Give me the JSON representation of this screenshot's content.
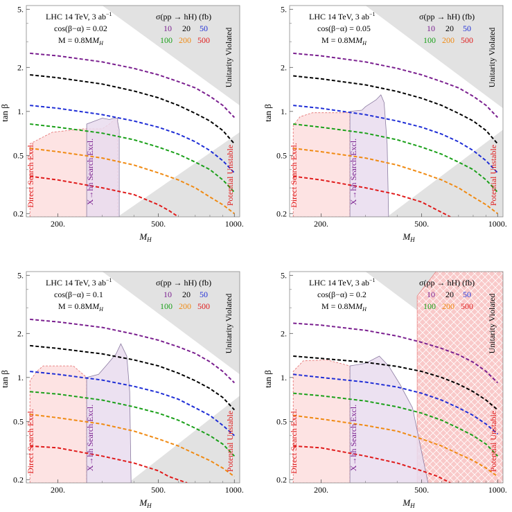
{
  "figure": {
    "legend_title": "σ(pp → hH) (fb)",
    "legend_values": [
      {
        "label": "10",
        "color": "#7a1f8f"
      },
      {
        "label": "20",
        "color": "#000000"
      },
      {
        "label": "50",
        "color": "#1f2ed6"
      },
      {
        "label": "100",
        "color": "#1aa019"
      },
      {
        "label": "200",
        "color": "#f08a12"
      },
      {
        "label": "500",
        "color": "#e01b1b"
      }
    ],
    "region_labels": {
      "unitarity": "Unitarity Violated",
      "potential": "Potential Unstable",
      "direct": "Direct Search Excl.",
      "xhh": "X→hh Search Excl."
    },
    "colors": {
      "gray_region": "#e2e2e2",
      "direct_fill": "#fde3e3",
      "direct_edge": "#e36a6a",
      "xhh_fill": "#e9dcef",
      "xhh_edge": "#8a7aa0",
      "hatch_fill": "#f9c9c9"
    }
  },
  "chart_data": [
    {
      "type": "line",
      "header": "LHC 14 TeV, 3 ab",
      "header_sup": "−1",
      "cos_label": "cos(β−α) = 0.02",
      "mass_label": "M = 0.8M",
      "xlabel": "M",
      "xlabel_sub": "H",
      "ylabel": "tan β",
      "xscale": "log",
      "yscale": "log",
      "xlim": [
        150,
        1050
      ],
      "ylim": [
        0.19,
        5.3
      ],
      "x_ticks": [
        "200.",
        "500.",
        "1000."
      ],
      "x_tick_values": [
        200,
        500,
        1000
      ],
      "y_ticks": [
        "0.2",
        "0.5",
        "1.",
        "2.",
        "5."
      ],
      "y_tick_values": [
        0.2,
        0.5,
        1,
        2,
        5
      ],
      "series": [
        {
          "name": "10",
          "x": [
            155,
            200,
            300,
            400,
            500,
            600,
            700,
            800,
            900,
            1000
          ],
          "y": [
            2.5,
            2.4,
            2.18,
            1.97,
            1.78,
            1.6,
            1.45,
            1.27,
            1.1,
            0.91
          ]
        },
        {
          "name": "20",
          "x": [
            155,
            200,
            300,
            400,
            500,
            600,
            700,
            800,
            900,
            1000
          ],
          "y": [
            1.78,
            1.7,
            1.54,
            1.38,
            1.24,
            1.1,
            0.97,
            0.86,
            0.74,
            0.6
          ]
        },
        {
          "name": "50",
          "x": [
            155,
            200,
            300,
            400,
            500,
            600,
            700,
            800,
            900,
            1000
          ],
          "y": [
            1.1,
            1.05,
            0.95,
            0.86,
            0.78,
            0.7,
            0.62,
            0.54,
            0.46,
            0.38
          ]
        },
        {
          "name": "100",
          "x": [
            155,
            200,
            300,
            400,
            500,
            600,
            700,
            800,
            900,
            1000
          ],
          "y": [
            0.82,
            0.78,
            0.71,
            0.64,
            0.57,
            0.51,
            0.45,
            0.4,
            0.34,
            0.28
          ]
        },
        {
          "name": "200",
          "x": [
            155,
            200,
            300,
            400,
            500,
            600,
            700,
            800,
            900,
            1000
          ],
          "y": [
            0.56,
            0.53,
            0.48,
            0.43,
            0.38,
            0.34,
            0.3,
            0.26,
            0.23,
            0.2
          ]
        },
        {
          "name": "500",
          "x": [
            155,
            200,
            300,
            400,
            500,
            550,
            600
          ],
          "y": [
            0.36,
            0.34,
            0.3,
            0.27,
            0.23,
            0.21,
            0.19
          ]
        }
      ],
      "direct_region": [
        [
          155,
          0.19
        ],
        [
          155,
          0.6
        ],
        [
          190,
          0.72
        ],
        [
          250,
          0.76
        ],
        [
          300,
          0.76
        ],
        [
          320,
          0.82
        ],
        [
          335,
          0.88
        ],
        [
          345,
          0.88
        ],
        [
          345,
          0.19
        ]
      ],
      "xhh_region": [
        [
          260,
          0.19
        ],
        [
          260,
          0.82
        ],
        [
          280,
          0.86
        ],
        [
          300,
          0.9
        ],
        [
          320,
          0.88
        ],
        [
          335,
          0.9
        ],
        [
          345,
          0.9
        ],
        [
          345,
          0.85
        ],
        [
          350,
          0.75
        ],
        [
          350,
          0.19
        ]
      ],
      "unitarity_region": [
        [
          300,
          5.3
        ],
        [
          1050,
          5.3
        ],
        [
          1050,
          1.1
        ]
      ],
      "potential_region": [
        [
          345,
          0.19
        ],
        [
          1050,
          0.72
        ],
        [
          1050,
          0.19
        ]
      ],
      "hatched_region": []
    },
    {
      "type": "line",
      "header": "LHC 14 TeV, 3 ab",
      "header_sup": "−1",
      "cos_label": "cos(β−α) = 0.05",
      "mass_label": "M = 0.8M",
      "xlabel": "M",
      "xlabel_sub": "H",
      "ylabel": "tan β",
      "xscale": "log",
      "yscale": "log",
      "xlim": [
        150,
        1050
      ],
      "ylim": [
        0.19,
        5.3
      ],
      "x_ticks": [
        "200.",
        "500.",
        "1000."
      ],
      "x_tick_values": [
        200,
        500,
        1000
      ],
      "y_ticks": [
        "0.2",
        "0.5",
        "1.",
        "2.",
        "5."
      ],
      "y_tick_values": [
        0.2,
        0.5,
        1,
        2,
        5
      ],
      "series": [
        {
          "name": "10",
          "x": [
            155,
            200,
            300,
            400,
            500,
            600,
            700,
            800,
            900,
            1000
          ],
          "y": [
            2.5,
            2.4,
            2.18,
            1.97,
            1.78,
            1.6,
            1.45,
            1.27,
            1.1,
            0.91
          ]
        },
        {
          "name": "20",
          "x": [
            155,
            200,
            300,
            400,
            500,
            600,
            700,
            800,
            900,
            1000
          ],
          "y": [
            1.75,
            1.67,
            1.52,
            1.37,
            1.23,
            1.1,
            0.97,
            0.86,
            0.74,
            0.6
          ]
        },
        {
          "name": "50",
          "x": [
            155,
            200,
            300,
            400,
            500,
            600,
            700,
            800,
            900,
            1000
          ],
          "y": [
            1.1,
            1.05,
            0.95,
            0.86,
            0.78,
            0.7,
            0.62,
            0.54,
            0.46,
            0.38
          ]
        },
        {
          "name": "100",
          "x": [
            155,
            200,
            300,
            400,
            500,
            600,
            700,
            800,
            900,
            1000
          ],
          "y": [
            0.82,
            0.78,
            0.71,
            0.64,
            0.57,
            0.51,
            0.45,
            0.4,
            0.34,
            0.28
          ]
        },
        {
          "name": "200",
          "x": [
            155,
            200,
            300,
            400,
            500,
            600,
            700,
            800,
            900,
            1000
          ],
          "y": [
            0.56,
            0.53,
            0.48,
            0.43,
            0.38,
            0.34,
            0.3,
            0.26,
            0.23,
            0.2
          ]
        },
        {
          "name": "500",
          "x": [
            155,
            200,
            300,
            400,
            500,
            580,
            650
          ],
          "y": [
            0.36,
            0.34,
            0.3,
            0.27,
            0.24,
            0.21,
            0.19
          ]
        }
      ],
      "direct_region": [
        [
          155,
          0.19
        ],
        [
          155,
          0.8
        ],
        [
          165,
          0.92
        ],
        [
          185,
          0.98
        ],
        [
          260,
          0.98
        ],
        [
          260,
          0.19
        ]
      ],
      "xhh_region": [
        [
          260,
          0.19
        ],
        [
          260,
          1.0
        ],
        [
          290,
          1.02
        ],
        [
          300,
          1.08
        ],
        [
          330,
          1.2
        ],
        [
          345,
          1.3
        ],
        [
          355,
          1.15
        ],
        [
          365,
          0.6
        ],
        [
          370,
          0.19
        ]
      ],
      "unitarity_region": [
        [
          300,
          5.3
        ],
        [
          1050,
          5.3
        ],
        [
          1050,
          1.05
        ]
      ],
      "potential_region": [
        [
          365,
          0.19
        ],
        [
          1050,
          0.75
        ],
        [
          1050,
          0.19
        ]
      ],
      "hatched_region": []
    },
    {
      "type": "line",
      "header": "LHC 14 TeV, 3 ab",
      "header_sup": "−1",
      "cos_label": "cos(β−α) = 0.1",
      "mass_label": "M = 0.8M",
      "xlabel": "M",
      "xlabel_sub": "H",
      "ylabel": "tan β",
      "xscale": "log",
      "yscale": "log",
      "xlim": [
        150,
        1050
      ],
      "ylim": [
        0.19,
        5.3
      ],
      "x_ticks": [
        "200.",
        "500.",
        "1000."
      ],
      "x_tick_values": [
        200,
        500,
        1000
      ],
      "y_ticks": [
        "0.2",
        "0.5",
        "1.",
        "2.",
        "5."
      ],
      "y_tick_values": [
        0.2,
        0.5,
        1,
        2,
        5
      ],
      "series": [
        {
          "name": "10",
          "x": [
            155,
            200,
            300,
            400,
            500,
            600,
            700,
            800,
            900,
            1000
          ],
          "y": [
            2.5,
            2.4,
            2.2,
            1.98,
            1.8,
            1.62,
            1.46,
            1.28,
            1.1,
            0.92
          ]
        },
        {
          "name": "20",
          "x": [
            155,
            200,
            300,
            400,
            500,
            600,
            700,
            800,
            900,
            1000
          ],
          "y": [
            1.65,
            1.58,
            1.45,
            1.32,
            1.2,
            1.07,
            0.95,
            0.84,
            0.73,
            0.6
          ]
        },
        {
          "name": "50",
          "x": [
            155,
            200,
            300,
            400,
            500,
            600,
            700,
            800,
            900,
            1000
          ],
          "y": [
            1.1,
            1.05,
            0.96,
            0.87,
            0.79,
            0.71,
            0.62,
            0.55,
            0.47,
            0.4
          ]
        },
        {
          "name": "100",
          "x": [
            155,
            200,
            300,
            400,
            500,
            600,
            700,
            800,
            900,
            1000
          ],
          "y": [
            0.8,
            0.77,
            0.7,
            0.63,
            0.57,
            0.51,
            0.45,
            0.4,
            0.35,
            0.29
          ]
        },
        {
          "name": "200",
          "x": [
            155,
            200,
            300,
            400,
            500,
            600,
            700,
            800,
            900,
            1000
          ],
          "y": [
            0.56,
            0.53,
            0.48,
            0.43,
            0.38,
            0.34,
            0.3,
            0.27,
            0.24,
            0.21
          ]
        },
        {
          "name": "500",
          "x": [
            155,
            200,
            300,
            400,
            500,
            550,
            650
          ],
          "y": [
            0.34,
            0.33,
            0.29,
            0.26,
            0.23,
            0.21,
            0.19
          ]
        }
      ],
      "direct_region": [
        [
          155,
          0.19
        ],
        [
          155,
          0.95
        ],
        [
          165,
          1.1
        ],
        [
          175,
          1.2
        ],
        [
          230,
          1.2
        ],
        [
          260,
          1.0
        ],
        [
          260,
          0.19
        ]
      ],
      "xhh_region": [
        [
          260,
          0.19
        ],
        [
          260,
          1.0
        ],
        [
          290,
          1.05
        ],
        [
          310,
          1.2
        ],
        [
          340,
          1.45
        ],
        [
          355,
          1.7
        ],
        [
          375,
          1.4
        ],
        [
          385,
          0.8
        ],
        [
          390,
          0.19
        ]
      ],
      "unitarity_region": [
        [
          300,
          5.3
        ],
        [
          1050,
          5.3
        ],
        [
          1050,
          1.05
        ]
      ],
      "potential_region": [
        [
          380,
          0.19
        ],
        [
          1050,
          0.75
        ],
        [
          1050,
          0.19
        ]
      ],
      "hatched_region": []
    },
    {
      "type": "line",
      "header": "LHC 14 TeV, 3 ab",
      "header_sup": "−1",
      "cos_label": "cos(β−α) = 0.2",
      "mass_label": "M = 0.8M",
      "xlabel": "M",
      "xlabel_sub": "H",
      "ylabel": "tan β",
      "xscale": "log",
      "yscale": "log",
      "xlim": [
        150,
        1050
      ],
      "ylim": [
        0.19,
        5.3
      ],
      "x_ticks": [
        "200.",
        "500.",
        "1000."
      ],
      "x_tick_values": [
        200,
        500,
        1000
      ],
      "y_ticks": [
        "0.2",
        "0.5",
        "1.",
        "2.",
        "5."
      ],
      "y_tick_values": [
        0.2,
        0.5,
        1,
        2,
        5
      ],
      "series": [
        {
          "name": "10",
          "x": [
            155,
            200,
            300,
            400,
            500,
            600,
            700,
            800,
            900,
            1000
          ],
          "y": [
            2.35,
            2.28,
            2.1,
            1.92,
            1.74,
            1.58,
            1.43,
            1.27,
            1.1,
            0.92
          ]
        },
        {
          "name": "20",
          "x": [
            155,
            200,
            300,
            400,
            500,
            600,
            700,
            800,
            900,
            1000
          ],
          "y": [
            1.4,
            1.35,
            1.27,
            1.19,
            1.1,
            1.0,
            0.9,
            0.8,
            0.7,
            0.6
          ]
        },
        {
          "name": "50",
          "x": [
            155,
            200,
            300,
            400,
            500,
            600,
            700,
            800,
            900,
            1000
          ],
          "y": [
            1.05,
            1.0,
            0.93,
            0.86,
            0.78,
            0.7,
            0.62,
            0.55,
            0.48,
            0.41
          ]
        },
        {
          "name": "100",
          "x": [
            155,
            200,
            300,
            400,
            500,
            600,
            700,
            800,
            900,
            1000
          ],
          "y": [
            0.78,
            0.75,
            0.69,
            0.63,
            0.57,
            0.51,
            0.45,
            0.4,
            0.35,
            0.29
          ]
        },
        {
          "name": "200",
          "x": [
            155,
            200,
            300,
            400,
            500,
            600,
            700,
            800,
            900,
            1000
          ],
          "y": [
            0.55,
            0.52,
            0.47,
            0.43,
            0.38,
            0.34,
            0.3,
            0.27,
            0.24,
            0.21
          ]
        },
        {
          "name": "500",
          "x": [
            155,
            200,
            300,
            400,
            500,
            580,
            650
          ],
          "y": [
            0.34,
            0.33,
            0.29,
            0.26,
            0.23,
            0.21,
            0.19
          ]
        }
      ],
      "direct_region": [
        [
          155,
          0.19
        ],
        [
          155,
          1.1
        ],
        [
          170,
          1.3
        ],
        [
          210,
          1.32
        ],
        [
          260,
          1.2
        ],
        [
          260,
          0.19
        ]
      ],
      "xhh_region": [
        [
          260,
          0.19
        ],
        [
          260,
          1.2
        ],
        [
          300,
          1.25
        ],
        [
          340,
          1.4
        ],
        [
          370,
          1.2
        ],
        [
          410,
          0.9
        ],
        [
          460,
          0.62
        ],
        [
          530,
          0.19
        ]
      ],
      "unitarity_region": [
        [
          300,
          5.3
        ],
        [
          1050,
          5.3
        ],
        [
          1050,
          1.05
        ]
      ],
      "potential_region": [
        [
          600,
          0.19
        ],
        [
          1050,
          0.6
        ],
        [
          1050,
          0.19
        ]
      ],
      "hatched_region": [
        [
          480,
          0.19
        ],
        [
          480,
          3.6
        ],
        [
          570,
          5.3
        ],
        [
          1050,
          5.3
        ],
        [
          1050,
          0.19
        ]
      ]
    }
  ]
}
